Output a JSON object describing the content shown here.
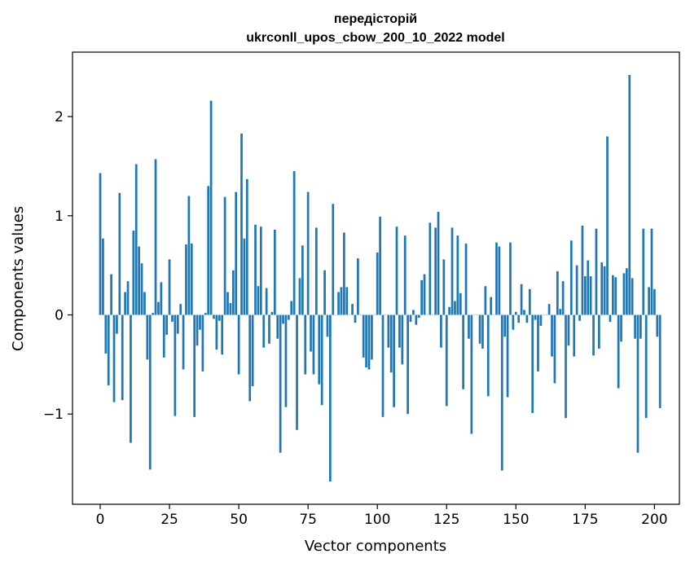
{
  "chart_data": {
    "type": "bar",
    "title_line1": "передісторій",
    "title_line2": "ukrconll_upos_cbow_200_10_2022 model",
    "xlabel": "Vector components",
    "ylabel": "Components values",
    "xlim": [
      -10,
      209
    ],
    "ylim": [
      -1.91,
      2.65
    ],
    "xticks": [
      0,
      25,
      50,
      75,
      100,
      125,
      150,
      175,
      200
    ],
    "xtick_labels": [
      "0",
      "25",
      "50",
      "75",
      "100",
      "125",
      "150",
      "175",
      "200"
    ],
    "yticks": [
      -1,
      0,
      1,
      2
    ],
    "ytick_labels": [
      "−1",
      "0",
      "1",
      "2"
    ],
    "grid": false,
    "legend": "none",
    "bar_color": "#1f77b4",
    "values": [
      1.43,
      0.77,
      -0.39,
      -0.71,
      0.41,
      -0.88,
      -0.19,
      1.23,
      -0.86,
      0.23,
      0.34,
      -1.29,
      0.85,
      1.52,
      0.69,
      0.52,
      0.23,
      -0.45,
      -1.56,
      0.02,
      1.57,
      0.13,
      0.33,
      -0.43,
      -0.2,
      0.56,
      -0.07,
      -1.02,
      -0.19,
      0.11,
      -0.55,
      0.71,
      1.2,
      0.72,
      -1.03,
      -0.31,
      -0.15,
      -0.57,
      0.02,
      1.3,
      2.16,
      -0.04,
      -0.35,
      -0.06,
      -0.4,
      1.19,
      0.23,
      0.12,
      0.45,
      1.24,
      -0.6,
      1.83,
      0.77,
      1.37,
      -0.87,
      -0.72,
      0.91,
      0.29,
      0.89,
      -0.33,
      0.27,
      -0.29,
      0.03,
      0.86,
      -0.24,
      -1.39,
      -0.09,
      -0.93,
      -0.05,
      0.14,
      1.45,
      -1.16,
      0.37,
      0.7,
      -0.6,
      1.24,
      -0.37,
      -0.6,
      0.88,
      -0.7,
      -0.91,
      0.45,
      -0.22,
      -1.68,
      1.12,
      0.0,
      0.23,
      0.28,
      0.83,
      0.28,
      0.0,
      0.11,
      -0.08,
      0.57,
      0.0,
      -0.43,
      -0.53,
      -0.55,
      -0.45,
      0.0,
      0.63,
      0.99,
      -1.03,
      0.0,
      -0.33,
      -0.58,
      -0.93,
      0.89,
      -0.33,
      -0.5,
      0.8,
      -1.0,
      -0.07,
      0.05,
      -0.1,
      -0.03,
      0.35,
      0.41,
      0.0,
      0.93,
      0.0,
      0.88,
      1.04,
      -0.33,
      0.56,
      -0.92,
      0.08,
      0.88,
      0.14,
      0.8,
      0.22,
      -0.75,
      0.72,
      -0.24,
      -1.2,
      0.0,
      0.0,
      -0.29,
      -0.34,
      0.29,
      -0.82,
      0.18,
      0.0,
      0.73,
      0.69,
      -1.57,
      -0.22,
      -0.83,
      0.73,
      -0.15,
      0.03,
      -0.08,
      0.31,
      0.05,
      -0.08,
      0.26,
      -0.99,
      -0.05,
      -0.57,
      -0.11,
      0.0,
      0.0,
      0.11,
      -0.42,
      -0.69,
      0.44,
      0.06,
      0.34,
      -1.04,
      -0.31,
      0.75,
      -0.42,
      0.5,
      -0.06,
      0.9,
      0.39,
      0.55,
      0.39,
      -0.41,
      0.87,
      -0.34,
      0.53,
      0.49,
      1.8,
      -0.07,
      0.4,
      0.38,
      -0.74,
      -0.27,
      0.42,
      0.47,
      2.42,
      0.37,
      -0.24,
      -1.39,
      -0.24,
      0.87,
      -1.04,
      0.28,
      0.87,
      0.26,
      -0.22,
      -0.94
    ]
  }
}
